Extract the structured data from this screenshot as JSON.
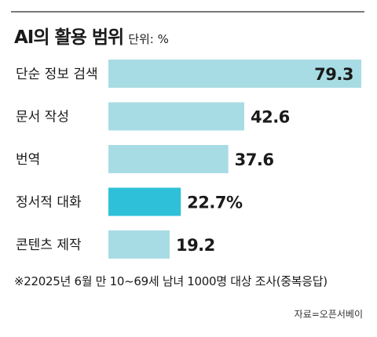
{
  "title": "AI의 활용 범위",
  "unit_label": "단위: %",
  "chart_data": {
    "type": "bar",
    "orientation": "horizontal",
    "title": "AI의 활용 범위",
    "unit": "단위: %",
    "categories": [
      "단순 정보 검색",
      "문서 작성",
      "번역",
      "정서적 대화",
      "콘텐츠 제작"
    ],
    "values": [
      79.3,
      42.6,
      37.6,
      22.7,
      19.2
    ],
    "value_labels": [
      "79.3",
      "42.6",
      "37.6",
      "22.7%",
      "19.2"
    ],
    "highlight_index": 3,
    "xlim": [
      0,
      79.3
    ],
    "colors": {
      "bar": "#a8dce4",
      "highlight": "#2ec0d8",
      "label": "#1a1a1a"
    }
  },
  "footnote": "※22025년 6월 만 10~69세 남녀 1000명 대상 조사(중복응답)",
  "source": "자료=오픈서베이"
}
